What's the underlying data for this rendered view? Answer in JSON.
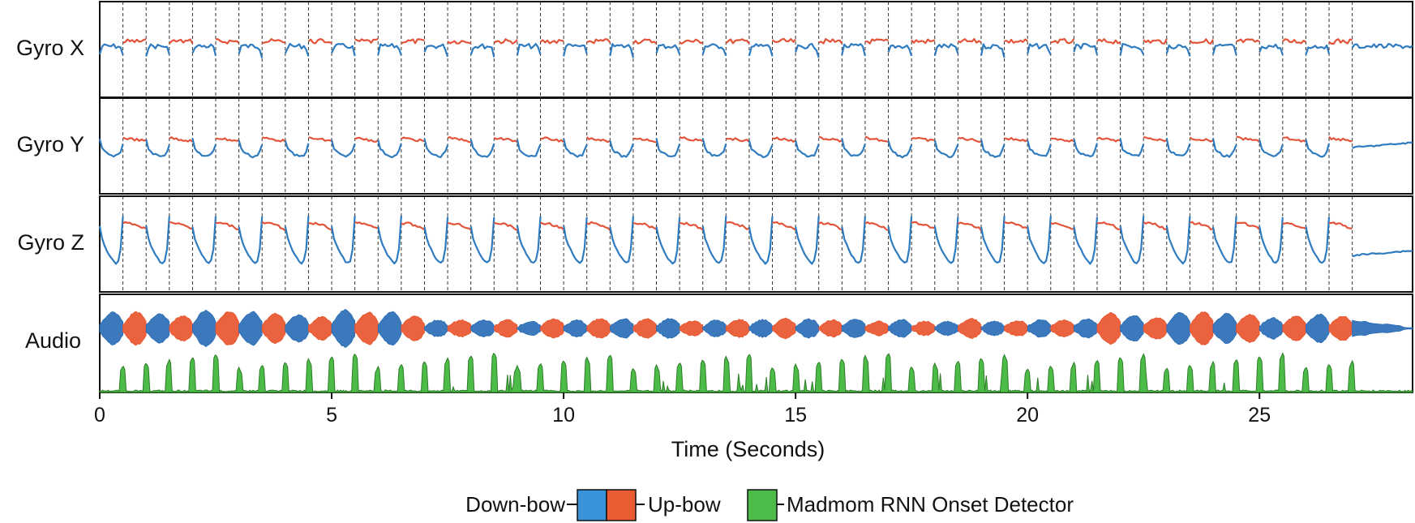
{
  "chart_data": {
    "type": "line",
    "title": "",
    "xlabel": "Time (Seconds)",
    "ylabel": "",
    "xlim": [
      0,
      28.3
    ],
    "x_ticks": [
      0,
      5,
      10,
      15,
      20,
      25
    ],
    "panels": [
      {
        "id": "gyro-x",
        "label": "Gyro X",
        "kind": "signal",
        "amplitude": "low"
      },
      {
        "id": "gyro-y",
        "label": "Gyro Y",
        "kind": "signal",
        "amplitude": "medium"
      },
      {
        "id": "gyro-z",
        "label": "Gyro Z",
        "kind": "signal",
        "amplitude": "high"
      },
      {
        "id": "audio",
        "label": "Audio",
        "kind": "waveform+onset"
      }
    ],
    "series": [
      {
        "name": "Down-bow",
        "color": "#2f7bbf"
      },
      {
        "name": "Up-bow",
        "color": "#e2553a"
      },
      {
        "name": "Madmom RNN Onset Detector",
        "color": "#4cbb47"
      }
    ],
    "onset_times": [
      0.5,
      1.0,
      1.5,
      2.0,
      2.5,
      3.0,
      3.5,
      4.0,
      4.5,
      5.0,
      5.5,
      6.0,
      6.5,
      7.0,
      7.5,
      8.0,
      8.5,
      9.0,
      9.5,
      10.0,
      10.5,
      11.0,
      11.5,
      12.0,
      12.5,
      13.0,
      13.5,
      14.0,
      14.5,
      15.0,
      15.5,
      16.0,
      16.5,
      17.0,
      17.5,
      18.0,
      18.5,
      19.0,
      19.5,
      20.0,
      20.5,
      21.0,
      21.5,
      22.0,
      22.5,
      23.0,
      23.5,
      24.0,
      24.5,
      25.0,
      25.5,
      26.0,
      26.5,
      27.0
    ],
    "bow_segments_start": "down",
    "end_time_of_bowing": 27.0
  },
  "legend": {
    "down_label": "Down-bow",
    "up_label": "Up-bow",
    "onset_label": "Madmom RNN Onset Detector"
  },
  "colors": {
    "down": "#2f7bbf",
    "up": "#e2553a",
    "audio_down": "#2a6cb6",
    "audio_up": "#e8552e",
    "onset": "#4cbb47",
    "onset_edge": "#2e7d2a",
    "legend_down": "#3a93d8",
    "legend_up": "#ea5a33"
  }
}
